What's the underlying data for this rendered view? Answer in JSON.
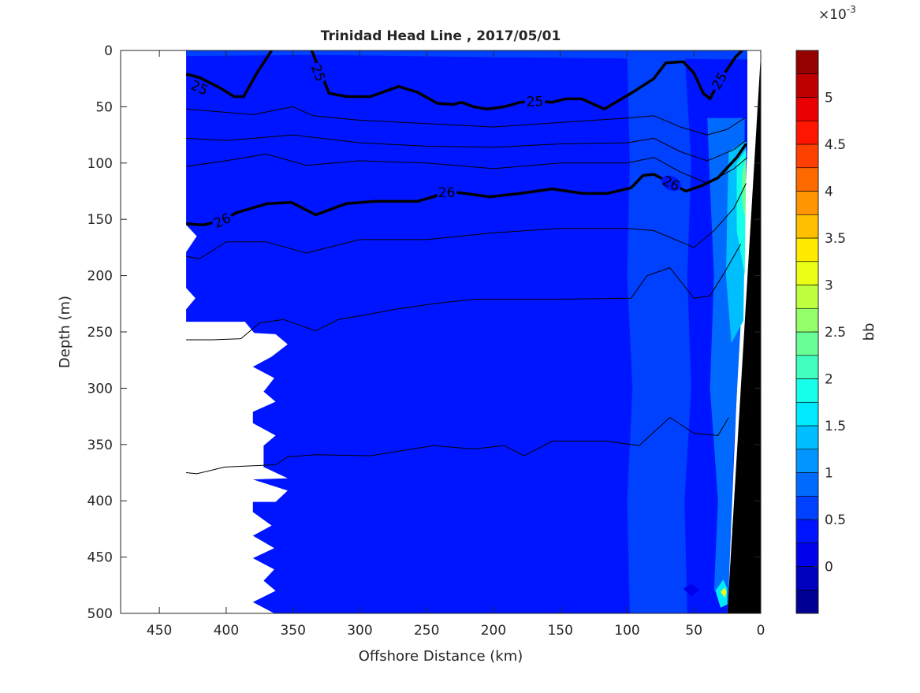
{
  "chart_data": {
    "type": "heatmap",
    "subtype": "filled-contour section with density contour overlay",
    "title": "Trinidad Head Line , 2017/05/01",
    "xlabel": "Offshore Distance (km)",
    "ylabel": "Depth (m)",
    "xlim": [
      0,
      479
    ],
    "x_reversed": true,
    "ylim": [
      0,
      500
    ],
    "y_reversed": true,
    "xticks": [
      450,
      400,
      350,
      300,
      250,
      200,
      150,
      100,
      50,
      0
    ],
    "yticks": [
      0,
      50,
      100,
      150,
      200,
      250,
      300,
      350,
      400,
      450,
      500
    ],
    "colorbar": {
      "label": "bb",
      "exponent_label": "×10",
      "exponent_power": "-3",
      "colormap": "jet",
      "range": [
        -0.5,
        5.5
      ],
      "level_step": 0.25,
      "ticks": [
        "0",
        "0.5",
        "1",
        "1.5",
        "2",
        "2.5",
        "3",
        "3.5",
        "4",
        "4.5",
        "5"
      ],
      "tick_values": [
        0,
        0.5,
        1,
        1.5,
        2,
        2.5,
        3,
        3.5,
        4,
        4.5,
        5
      ]
    },
    "data_extent_boundary": [
      [
        430,
        0
      ],
      [
        430,
        155
      ],
      [
        422,
        165
      ],
      [
        430,
        179
      ],
      [
        430,
        211
      ],
      [
        423,
        220
      ],
      [
        430,
        230
      ],
      [
        430,
        241
      ],
      [
        386,
        241
      ],
      [
        379,
        251
      ],
      [
        363,
        252
      ],
      [
        354,
        261
      ],
      [
        366,
        272
      ],
      [
        380,
        281
      ],
      [
        364,
        291
      ],
      [
        372,
        303
      ],
      [
        363,
        312
      ],
      [
        380,
        321
      ],
      [
        380,
        331
      ],
      [
        363,
        342
      ],
      [
        372,
        351
      ],
      [
        372,
        370
      ],
      [
        354,
        380
      ],
      [
        380,
        381
      ],
      [
        354,
        391
      ],
      [
        363,
        401
      ],
      [
        380,
        401
      ],
      [
        380,
        410
      ],
      [
        366,
        422
      ],
      [
        380,
        431
      ],
      [
        364,
        442
      ],
      [
        380,
        451
      ],
      [
        364,
        461
      ],
      [
        372,
        471
      ],
      [
        363,
        480
      ],
      [
        380,
        490
      ],
      [
        364,
        500
      ],
      [
        25,
        500
      ],
      [
        10,
        86
      ],
      [
        10,
        0
      ]
    ],
    "bathymetry": [
      [
        0,
        4
      ],
      [
        0,
        500
      ],
      [
        25,
        500
      ]
    ],
    "fill_regions": [
      {
        "name": "surface-layer",
        "value": 0.6,
        "points": [
          [
            430,
            0
          ],
          [
            10,
            0
          ],
          [
            10,
            8
          ],
          [
            200,
            6
          ],
          [
            330,
            4
          ],
          [
            430,
            5
          ]
        ]
      },
      {
        "name": "shelf-break-band",
        "value": 0.6,
        "points": [
          [
            100,
            0
          ],
          [
            57,
            0
          ],
          [
            52,
            100
          ],
          [
            55,
            200
          ],
          [
            52,
            300
          ],
          [
            57,
            400
          ],
          [
            55,
            500
          ],
          [
            98,
            500
          ],
          [
            100,
            400
          ],
          [
            96,
            300
          ],
          [
            100,
            200
          ],
          [
            98,
            100
          ]
        ]
      },
      {
        "name": "coastal-strip",
        "value": 0.8,
        "points": [
          [
            40,
            60
          ],
          [
            12,
            60
          ],
          [
            13,
            200
          ],
          [
            20,
            350
          ],
          [
            24,
            480
          ],
          [
            35,
            480
          ],
          [
            32,
            400
          ],
          [
            38,
            300
          ],
          [
            35,
            200
          ],
          [
            38,
            120
          ]
        ]
      },
      {
        "name": "coastal-mid",
        "value": 1.3,
        "points": [
          [
            24,
            90
          ],
          [
            11,
            80
          ],
          [
            13,
            240
          ],
          [
            22,
            260
          ],
          [
            26,
            200
          ],
          [
            25,
            140
          ]
        ]
      },
      {
        "name": "coastal-high",
        "value": 1.8,
        "points": [
          [
            18,
            100
          ],
          [
            11,
            88
          ],
          [
            12,
            200
          ],
          [
            18,
            160
          ]
        ]
      },
      {
        "name": "coastal-peak",
        "value": 2.3,
        "points": [
          [
            14,
            110
          ],
          [
            11,
            95
          ],
          [
            11.5,
            150
          ],
          [
            14,
            135
          ]
        ]
      },
      {
        "name": "bottom-spot-outer",
        "value": 1.6,
        "points": [
          [
            34,
            480
          ],
          [
            28,
            470
          ],
          [
            25,
            478
          ],
          [
            25,
            492
          ],
          [
            30,
            495
          ]
        ]
      },
      {
        "name": "bottom-spot-core",
        "value": 3.2,
        "points": [
          [
            30,
            481
          ],
          [
            27,
            477
          ],
          [
            25.5,
            481
          ],
          [
            27,
            486
          ]
        ]
      },
      {
        "name": "deep-patch-50km",
        "value": 0.1,
        "points": [
          [
            58,
            478
          ],
          [
            52,
            474
          ],
          [
            46,
            479
          ],
          [
            52,
            485
          ]
        ]
      }
    ],
    "base_value": 0.3,
    "contours": [
      {
        "level": "25",
        "thick": true,
        "points": [
          [
            430,
            21
          ],
          [
            420,
            24
          ],
          [
            405,
            33
          ],
          [
            394,
            41
          ],
          [
            387,
            41
          ],
          [
            377,
            20
          ],
          [
            366,
            0
          ]
        ]
      },
      {
        "level": "25",
        "thick": true,
        "points": [
          [
            336,
            0
          ],
          [
            330,
            18
          ],
          [
            323,
            38
          ],
          [
            310,
            41
          ],
          [
            292,
            41
          ],
          [
            271,
            32
          ],
          [
            257,
            37
          ],
          [
            242,
            47
          ],
          [
            230,
            48
          ],
          [
            224,
            46
          ],
          [
            215,
            50
          ],
          [
            205,
            52
          ],
          [
            192,
            50
          ],
          [
            180,
            46
          ],
          [
            169,
            45
          ],
          [
            156,
            46
          ],
          [
            146,
            43
          ],
          [
            134,
            43
          ],
          [
            117,
            52
          ],
          [
            97,
            38
          ],
          [
            80,
            25
          ],
          [
            71,
            11
          ],
          [
            58,
            10
          ],
          [
            50,
            20
          ],
          [
            43,
            38
          ],
          [
            38,
            43
          ],
          [
            31,
            27
          ],
          [
            24,
            15
          ],
          [
            19,
            6
          ],
          [
            14,
            0
          ]
        ]
      },
      {
        "level": "",
        "thick": false,
        "points": [
          [
            430,
            52
          ],
          [
            380,
            57
          ],
          [
            350,
            50
          ],
          [
            335,
            58
          ],
          [
            300,
            62
          ],
          [
            250,
            65
          ],
          [
            200,
            68
          ],
          [
            150,
            64
          ],
          [
            100,
            60
          ],
          [
            80,
            58
          ],
          [
            60,
            68
          ],
          [
            40,
            75
          ],
          [
            25,
            70
          ],
          [
            12,
            60
          ]
        ]
      },
      {
        "level": "",
        "thick": false,
        "points": [
          [
            430,
            78
          ],
          [
            400,
            80
          ],
          [
            350,
            75
          ],
          [
            300,
            82
          ],
          [
            250,
            85
          ],
          [
            200,
            86
          ],
          [
            150,
            83
          ],
          [
            100,
            82
          ],
          [
            80,
            78
          ],
          [
            60,
            90
          ],
          [
            40,
            98
          ],
          [
            20,
            88
          ],
          [
            11,
            80
          ]
        ]
      },
      {
        "level": "",
        "thick": false,
        "points": [
          [
            430,
            103
          ],
          [
            400,
            98
          ],
          [
            370,
            92
          ],
          [
            340,
            102
          ],
          [
            300,
            98
          ],
          [
            250,
            100
          ],
          [
            200,
            105
          ],
          [
            150,
            100
          ],
          [
            100,
            100
          ],
          [
            80,
            95
          ],
          [
            60,
            108
          ],
          [
            40,
            118
          ],
          [
            20,
            105
          ],
          [
            10,
            95
          ]
        ]
      },
      {
        "level": "26",
        "thick": true,
        "points": [
          [
            430,
            154
          ],
          [
            417,
            155
          ],
          [
            403,
            151
          ],
          [
            392,
            144
          ],
          [
            369,
            136
          ],
          [
            351,
            135
          ],
          [
            333,
            146
          ],
          [
            310,
            136
          ],
          [
            289,
            134
          ],
          [
            257,
            134
          ],
          [
            245,
            130
          ],
          [
            235,
            125
          ],
          [
            221,
            127
          ],
          [
            203,
            130
          ],
          [
            180,
            127
          ],
          [
            156,
            123
          ],
          [
            133,
            127
          ],
          [
            115,
            127
          ],
          [
            97,
            122
          ],
          [
            88,
            111
          ],
          [
            80,
            110
          ],
          [
            67,
            118
          ],
          [
            56,
            125
          ],
          [
            44,
            120
          ],
          [
            32,
            113
          ],
          [
            18,
            95
          ],
          [
            11,
            83
          ]
        ]
      },
      {
        "level": "",
        "thick": false,
        "points": [
          [
            430,
            183
          ],
          [
            420,
            185
          ],
          [
            400,
            170
          ],
          [
            370,
            170
          ],
          [
            340,
            180
          ],
          [
            300,
            168
          ],
          [
            250,
            168
          ],
          [
            200,
            162
          ],
          [
            150,
            158
          ],
          [
            100,
            158
          ],
          [
            80,
            160
          ],
          [
            60,
            170
          ],
          [
            50,
            175
          ],
          [
            35,
            160
          ],
          [
            20,
            140
          ],
          [
            11,
            118
          ]
        ]
      },
      {
        "level": "",
        "thick": false,
        "points": [
          [
            430,
            257
          ],
          [
            410,
            257
          ],
          [
            389,
            256
          ],
          [
            375,
            242
          ],
          [
            357,
            239
          ],
          [
            333,
            249
          ],
          [
            316,
            239
          ],
          [
            292,
            234
          ],
          [
            274,
            230
          ],
          [
            245,
            225
          ],
          [
            215,
            221
          ],
          [
            156,
            221
          ],
          [
            97,
            220
          ],
          [
            85,
            200
          ],
          [
            68,
            193
          ],
          [
            50,
            220
          ],
          [
            38,
            218
          ],
          [
            27,
            197
          ],
          [
            15,
            172
          ]
        ]
      },
      {
        "level": "",
        "thick": false,
        "points": [
          [
            430,
            375
          ],
          [
            422,
            376
          ],
          [
            401,
            370
          ],
          [
            363,
            368
          ],
          [
            354,
            361
          ],
          [
            333,
            359
          ],
          [
            292,
            360
          ],
          [
            245,
            351
          ],
          [
            215,
            354
          ],
          [
            192,
            351
          ],
          [
            177,
            360
          ],
          [
            156,
            347
          ],
          [
            115,
            347
          ],
          [
            91,
            351
          ],
          [
            68,
            326
          ],
          [
            50,
            340
          ],
          [
            32,
            342
          ],
          [
            24,
            326
          ]
        ]
      }
    ],
    "contour_labels": [
      {
        "text": "25",
        "x": 420,
        "y": 33,
        "angle": 25
      },
      {
        "text": "25",
        "x": 331,
        "y": 20,
        "angle": 70
      },
      {
        "text": "25",
        "x": 169,
        "y": 45,
        "angle": 0
      },
      {
        "text": "25",
        "x": 31,
        "y": 27,
        "angle": -60
      },
      {
        "text": "26",
        "x": 403,
        "y": 151,
        "angle": -25
      },
      {
        "text": "26",
        "x": 235,
        "y": 126,
        "angle": 0
      },
      {
        "text": "26",
        "x": 67,
        "y": 118,
        "angle": 25
      }
    ]
  }
}
